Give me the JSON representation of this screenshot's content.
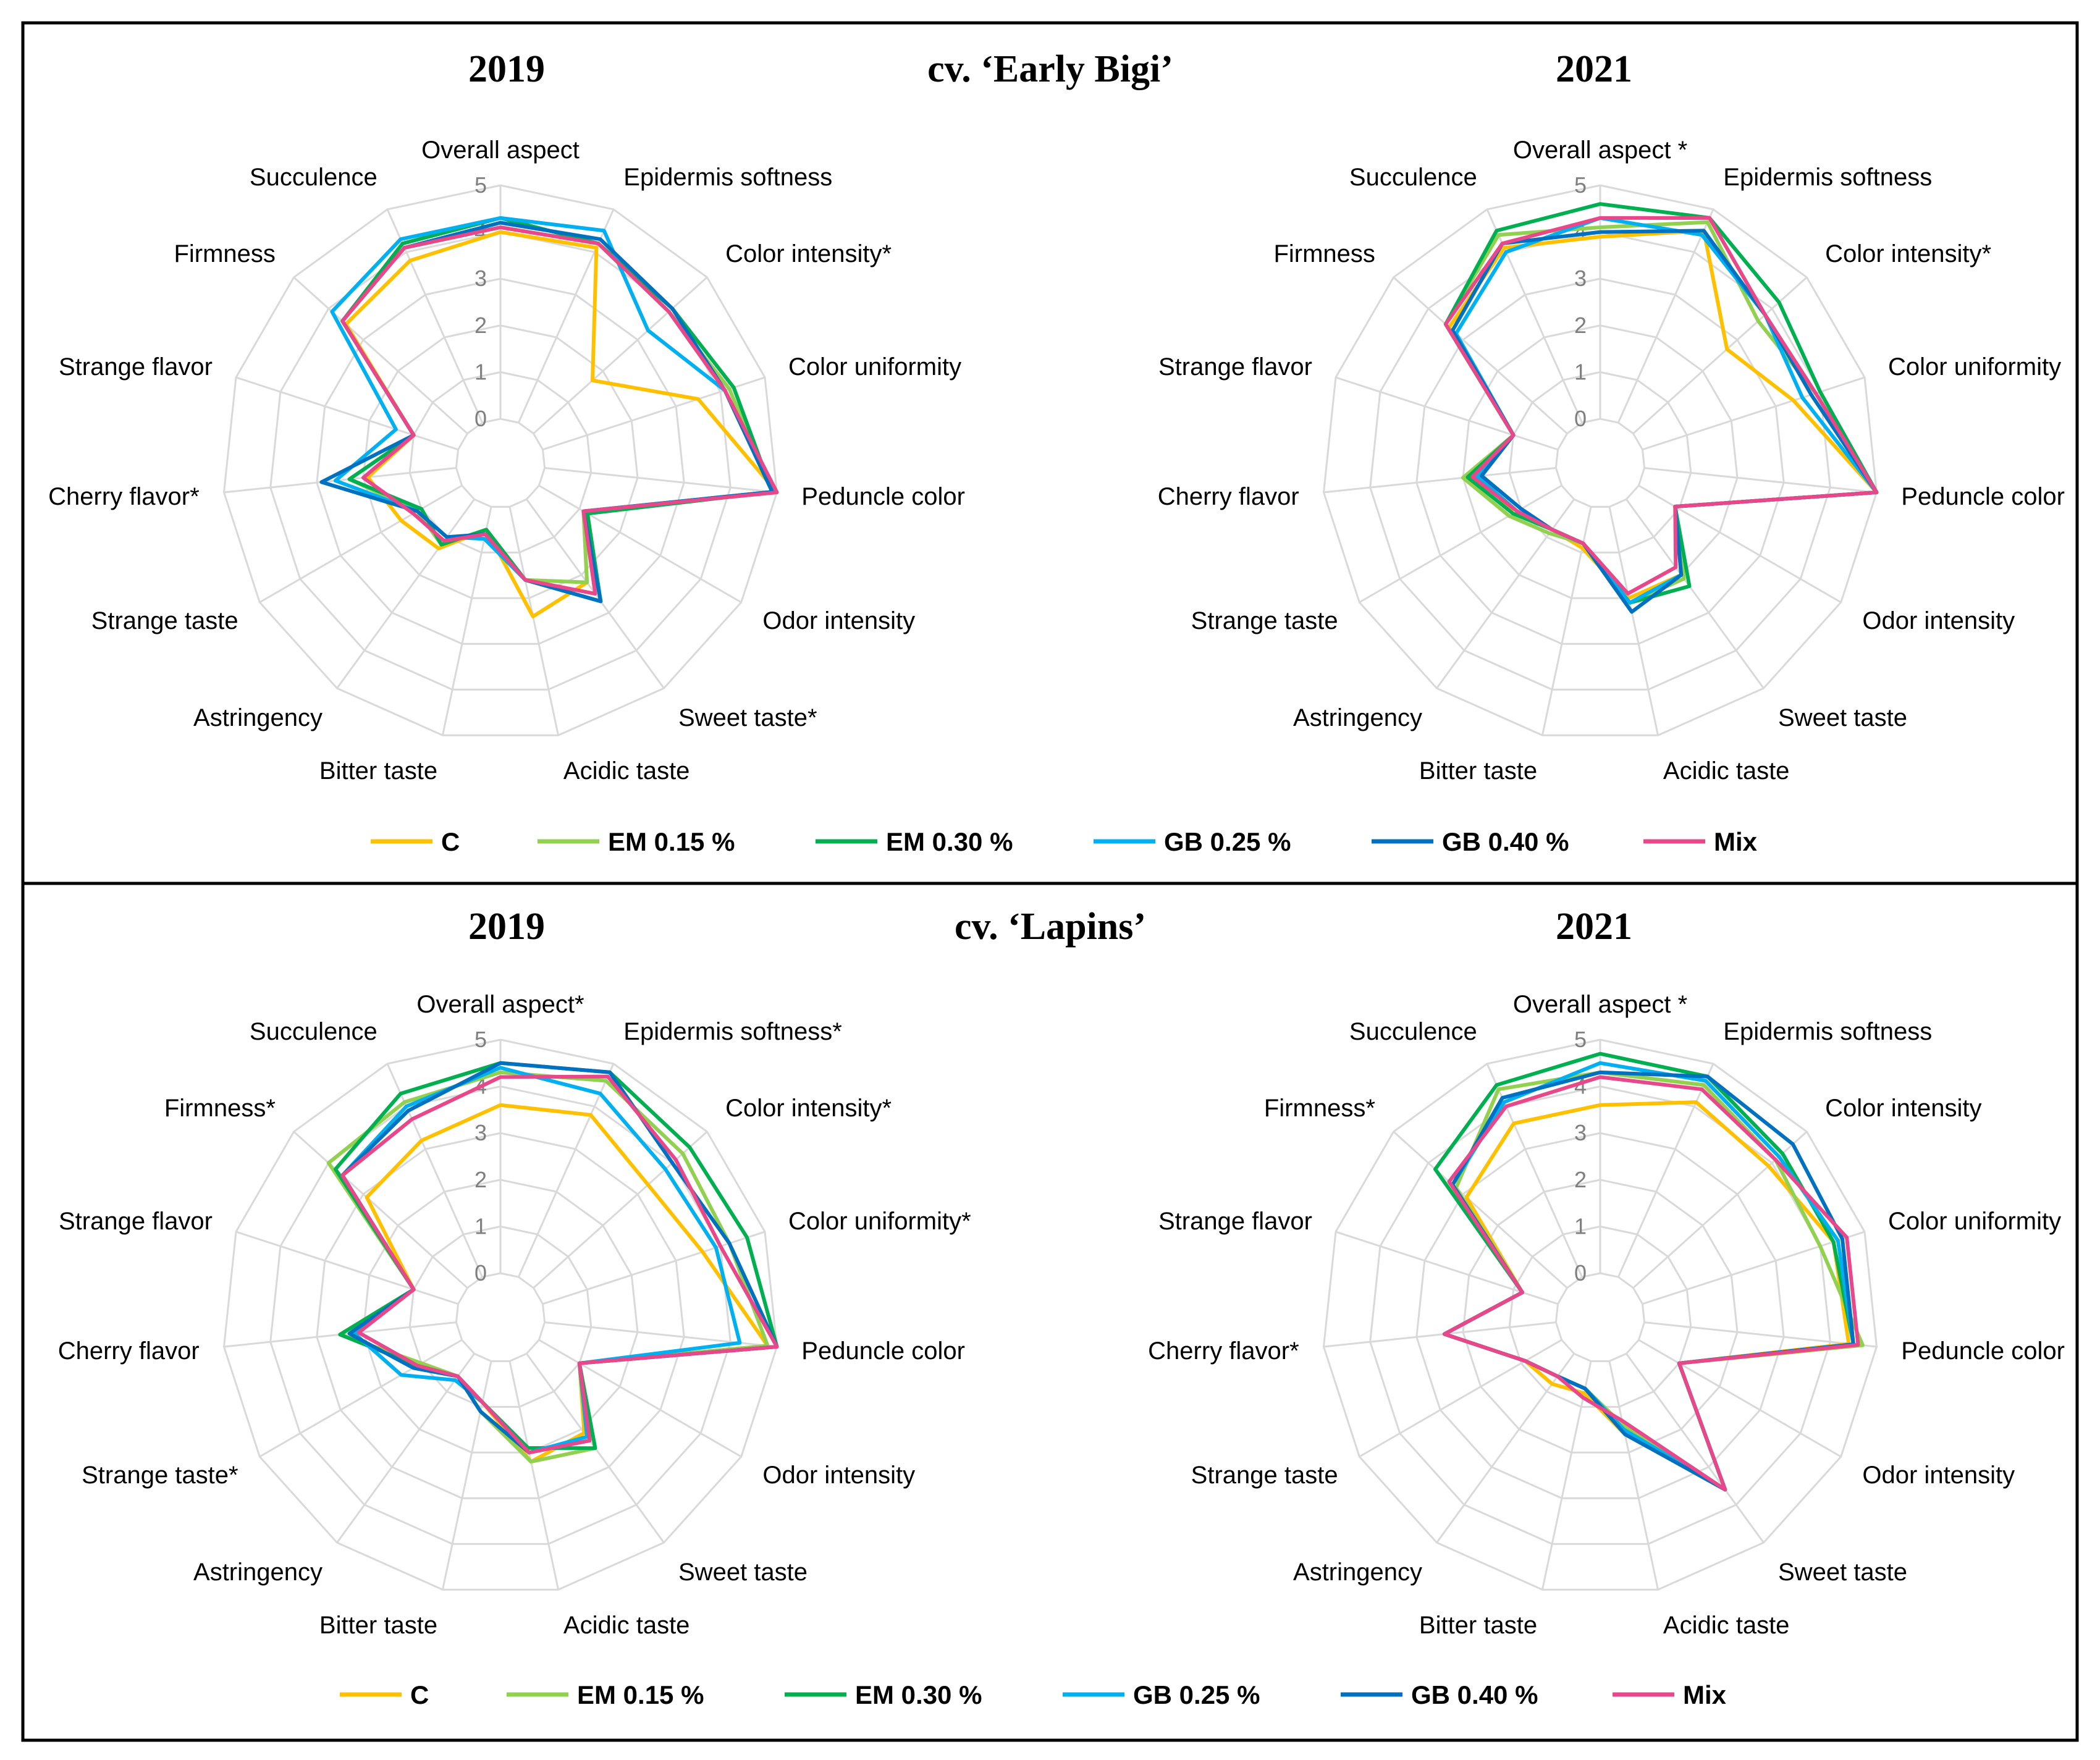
{
  "panels": [
    {
      "left_title": "2019",
      "center_title": "cv. ‘Early Bigi’",
      "right_title": "2021",
      "legend": [
        {
          "label": "C",
          "color": "#FFC000"
        },
        {
          "label": "EM 0.15 %",
          "color": "#92D050"
        },
        {
          "label": "EM 0.30 %",
          "color": "#00B050"
        },
        {
          "label": "GB 0.25 %",
          "color": "#00B0F0"
        },
        {
          "label": "GB 0.40 %",
          "color": "#0070C0"
        },
        {
          "label": "Mix",
          "color": "#E8488A"
        }
      ]
    },
    {
      "left_title": "2019",
      "center_title": "cv. ‘Lapins’",
      "right_title": "2021",
      "legend": [
        {
          "label": "C",
          "color": "#FFC000"
        },
        {
          "label": "EM 0.15 %",
          "color": "#92D050"
        },
        {
          "label": "EM 0.30 %",
          "color": "#00B050"
        },
        {
          "label": "GB 0.25 %",
          "color": "#00B0F0"
        },
        {
          "label": "GB 0.40 %",
          "color": "#0070C0"
        },
        {
          "label": "Mix",
          "color": "#E8488A"
        }
      ]
    }
  ],
  "chart_data": [
    {
      "type": "radar",
      "title": "2019",
      "cultivar": "cv. ‘Early Bigi’",
      "tick_labels": [
        "0",
        "1",
        "2",
        "3",
        "4",
        "5"
      ],
      "rlim": [
        0,
        5
      ],
      "axes": [
        "Overall aspect",
        "Epidermis softness",
        "Color intensity*",
        "Color uniformity",
        "Peduncle color",
        "Odor intensity",
        "Sweet taste*",
        "Acidic taste",
        "Bitter taste",
        "Astringency",
        "Strange taste",
        "Cherry flavor*",
        "Strange flavor",
        "Firmness",
        "Succulence"
      ],
      "series": [
        {
          "name": "C",
          "color": "#FFC000",
          "values": [
            4.0,
            4.1,
            1.7,
            3.5,
            5.0,
            1.1,
            2.2,
            2.4,
            0.5,
            1.3,
            1.5,
            1.9,
            1.0,
            3.5,
            3.8
          ]
        },
        {
          "name": "EM 0.15 %",
          "color": "#92D050",
          "values": [
            4.1,
            4.2,
            3.9,
            4.2,
            4.9,
            1.1,
            2.2,
            1.6,
            0.5,
            1.2,
            1.1,
            2.3,
            1.0,
            3.6,
            4.1
          ]
        },
        {
          "name": "EM 0.30 %",
          "color": "#00B050",
          "values": [
            4.3,
            4.2,
            4.0,
            4.3,
            4.9,
            1.2,
            2.7,
            1.6,
            0.5,
            1.2,
            1.0,
            2.3,
            1.0,
            3.6,
            4.2
          ]
        },
        {
          "name": "GB 0.25 %",
          "color": "#00B0F0",
          "values": [
            4.3,
            4.5,
            3.3,
            4.1,
            4.9,
            1.1,
            2.7,
            1.6,
            0.7,
            1.0,
            1.1,
            2.6,
            1.4,
            3.9,
            4.3
          ]
        },
        {
          "name": "GB 0.40 %",
          "color": "#0070C0",
          "values": [
            4.2,
            4.3,
            4.0,
            4.1,
            4.9,
            1.1,
            2.7,
            1.6,
            0.6,
            1.0,
            1.1,
            2.9,
            1.0,
            3.6,
            4.1
          ]
        },
        {
          "name": "Mix",
          "color": "#E8488A",
          "values": [
            4.1,
            4.2,
            3.9,
            4.1,
            5.0,
            1.1,
            2.5,
            1.6,
            0.6,
            1.1,
            1.2,
            2.0,
            1.0,
            3.6,
            4.1
          ]
        }
      ]
    },
    {
      "type": "radar",
      "title": "2021",
      "cultivar": "cv. ‘Early Bigi’",
      "tick_labels": [
        "0",
        "1",
        "2",
        "3",
        "4",
        "5"
      ],
      "rlim": [
        0,
        5
      ],
      "axes": [
        "Overall aspect *",
        "Epidermis softness",
        "Color intensity*",
        "Color uniformity",
        "Peduncle color",
        "Odor intensity",
        "Sweet taste",
        "Acidic taste",
        "Bitter taste",
        "Astringency",
        "Strange taste",
        "Cherry flavor",
        "Strange flavor",
        "Firmness",
        "Succulence"
      ],
      "series": [
        {
          "name": "C",
          "color": "#FFC000",
          "values": [
            3.9,
            4.5,
            2.7,
            3.4,
            5.0,
            0.9,
            2.0,
            2.0,
            0.9,
            0.8,
            1.2,
            1.6,
            1.0,
            3.4,
            4.1
          ]
        },
        {
          "name": "EM 0.15 %",
          "color": "#92D050",
          "values": [
            4.1,
            4.7,
            3.6,
            3.9,
            5.0,
            0.9,
            2.1,
            2.1,
            0.8,
            0.9,
            1.3,
            2.0,
            1.0,
            3.5,
            4.4
          ]
        },
        {
          "name": "EM 0.30 %",
          "color": "#00B050",
          "values": [
            4.6,
            4.8,
            4.2,
            4.0,
            5.0,
            0.9,
            2.3,
            2.1,
            0.8,
            0.8,
            1.2,
            1.9,
            1.0,
            3.5,
            4.5
          ]
        },
        {
          "name": "GB 0.25 %",
          "color": "#00B0F0",
          "values": [
            4.3,
            4.4,
            3.8,
            3.6,
            5.0,
            0.9,
            2.0,
            2.1,
            0.8,
            0.8,
            1.1,
            1.7,
            1.0,
            3.2,
            4.0
          ]
        },
        {
          "name": "GB 0.40 %",
          "color": "#0070C0",
          "values": [
            4.0,
            4.5,
            3.8,
            3.8,
            5.0,
            0.9,
            2.0,
            2.3,
            0.8,
            0.8,
            1.0,
            1.6,
            1.0,
            3.3,
            4.2
          ]
        },
        {
          "name": "Mix",
          "color": "#E8488A",
          "values": [
            4.3,
            4.8,
            3.8,
            3.9,
            5.0,
            0.9,
            1.8,
            1.9,
            0.8,
            0.8,
            1.1,
            1.8,
            1.0,
            3.5,
            4.2
          ]
        }
      ]
    },
    {
      "type": "radar",
      "title": "2019",
      "cultivar": "cv. ‘Lapins’",
      "tick_labels": [
        "0",
        "1",
        "2",
        "3",
        "4",
        "5"
      ],
      "rlim": [
        0,
        5
      ],
      "axes": [
        "Overall aspect*",
        "Epidermis softness*",
        "Color intensity*",
        "Color uniformity*",
        "Peduncle color",
        "Odor intensity",
        "Sweet taste",
        "Acidic taste",
        "Bitter taste",
        "Astringency",
        "Strange taste*",
        "Cherry flavor",
        "Strange flavor",
        "Firmness*",
        "Succulence"
      ],
      "series": [
        {
          "name": "C",
          "color": "#FFC000",
          "values": [
            3.6,
            3.8,
            3.3,
            3.6,
            4.8,
            1.0,
            2.1,
            2.2,
            0.9,
            0.6,
            1.0,
            2.5,
            1.0,
            2.9,
            3.2
          ]
        },
        {
          "name": "EM 0.15 %",
          "color": "#92D050",
          "values": [
            4.3,
            4.6,
            4.3,
            4.2,
            4.8,
            1.0,
            2.5,
            2.2,
            1.1,
            0.6,
            1.0,
            2.5,
            1.0,
            4.0,
            4.1
          ]
        },
        {
          "name": "EM 0.30 %",
          "color": "#00B050",
          "values": [
            4.5,
            4.8,
            4.5,
            4.6,
            5.0,
            1.0,
            2.5,
            1.9,
            0.9,
            0.6,
            1.1,
            2.5,
            1.0,
            3.8,
            4.3
          ]
        },
        {
          "name": "GB 0.25 %",
          "color": "#00B0F0",
          "values": [
            4.4,
            4.3,
            3.8,
            3.9,
            4.2,
            1.0,
            2.2,
            2.0,
            0.9,
            0.7,
            1.5,
            2.2,
            1.0,
            3.6,
            4.0
          ]
        },
        {
          "name": "GB 0.40 %",
          "color": "#0070C0",
          "values": [
            4.5,
            4.8,
            4.0,
            4.2,
            5.0,
            1.0,
            2.3,
            2.0,
            1.1,
            0.6,
            1.2,
            2.3,
            1.0,
            3.6,
            3.9
          ]
        },
        {
          "name": "Mix",
          "color": "#E8488A",
          "values": [
            4.2,
            4.7,
            4.1,
            4.0,
            5.0,
            1.0,
            2.3,
            2.0,
            0.9,
            0.6,
            1.1,
            2.1,
            1.0,
            3.6,
            3.7
          ]
        }
      ]
    },
    {
      "type": "radar",
      "title": "2021",
      "cultivar": "cv. ‘Lapins’",
      "tick_labels": [
        "0",
        "1",
        "2",
        "3",
        "4",
        "5"
      ],
      "rlim": [
        0,
        5
      ],
      "axes": [
        "Overall aspect *",
        "Epidermis softness",
        "Color intensity",
        "Color uniformity",
        "Peduncle color",
        "Odor intensity",
        "Sweet taste",
        "Acidic taste",
        "Bitter taste",
        "Astringency",
        "Strange taste",
        "Cherry flavor*",
        "Strange flavor",
        "Firmness*",
        "Succulence"
      ],
      "series": [
        {
          "name": "C",
          "color": "#FFC000",
          "values": [
            3.6,
            4.1,
            3.9,
            4.3,
            4.4,
            1.0,
            3.6,
            1.6,
            0.7,
            0.8,
            0.9,
            2.4,
            0.8,
            2.9,
            3.6
          ]
        },
        {
          "name": "EM 0.15 %",
          "color": "#92D050",
          "values": [
            4.3,
            4.5,
            4.1,
            4.0,
            4.7,
            1.0,
            3.6,
            1.4,
            0.6,
            0.6,
            0.9,
            2.4,
            0.8,
            3.2,
            4.4
          ]
        },
        {
          "name": "EM 0.30 %",
          "color": "#00B050",
          "values": [
            4.7,
            4.7,
            4.3,
            4.3,
            4.5,
            1.0,
            3.6,
            1.5,
            0.6,
            0.6,
            0.9,
            2.4,
            0.8,
            3.8,
            4.5
          ]
        },
        {
          "name": "GB 0.25 %",
          "color": "#00B0F0",
          "values": [
            4.5,
            4.6,
            4.2,
            4.4,
            4.5,
            1.0,
            3.6,
            1.5,
            0.6,
            0.6,
            0.9,
            2.4,
            0.8,
            3.3,
            4.1
          ]
        },
        {
          "name": "GB 0.40 %",
          "color": "#0070C0",
          "values": [
            4.3,
            4.7,
            4.6,
            4.5,
            4.5,
            1.0,
            3.6,
            1.6,
            0.6,
            0.6,
            0.9,
            2.4,
            0.8,
            3.3,
            4.2
          ]
        },
        {
          "name": "Mix",
          "color": "#E8488A",
          "values": [
            4.2,
            4.4,
            4.1,
            4.6,
            4.6,
            1.0,
            3.6,
            1.3,
            0.8,
            0.6,
            0.9,
            2.4,
            0.8,
            3.4,
            4.0
          ]
        }
      ]
    }
  ]
}
